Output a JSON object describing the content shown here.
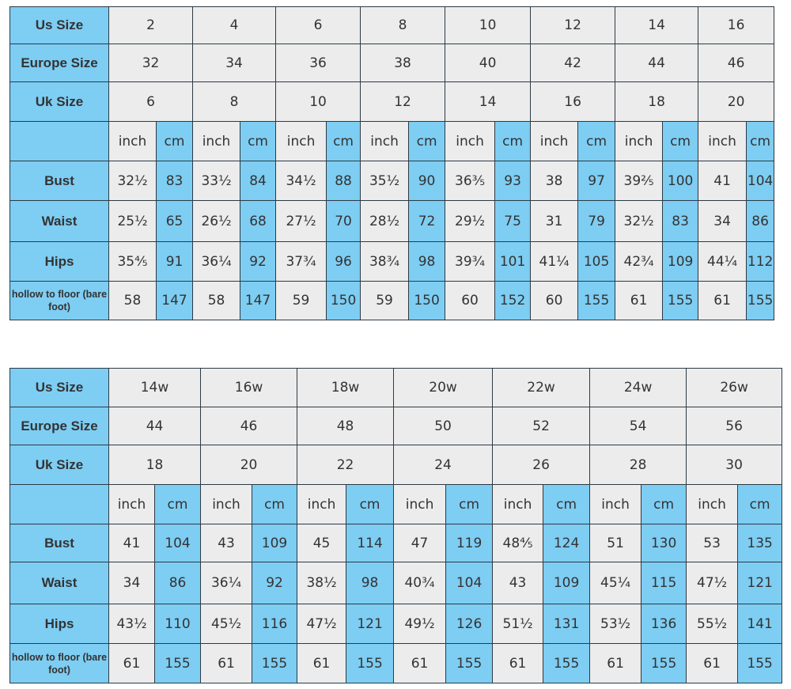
{
  "colors": {
    "label_blue": "#7ecdf3",
    "cell_gray": "#ececec",
    "border": "#2d3a45"
  },
  "tables": [
    {
      "row_labels": {
        "us": "Us Size",
        "europe": "Europe Size",
        "uk": "Uk Size",
        "units": "",
        "bust": "Bust",
        "waist": "Waist",
        "hips": "Hips",
        "hollow": "hollow to floor (bare foot)"
      },
      "unit_labels": {
        "inch": "inch",
        "cm": "cm"
      },
      "us": [
        "2",
        "4",
        "6",
        "8",
        "10",
        "12",
        "14",
        "16"
      ],
      "europe": [
        "32",
        "34",
        "36",
        "38",
        "40",
        "42",
        "44",
        "46"
      ],
      "uk": [
        "6",
        "8",
        "10",
        "12",
        "14",
        "16",
        "18",
        "20"
      ],
      "bust": [
        [
          "32½",
          "83"
        ],
        [
          "33½",
          "84"
        ],
        [
          "34½",
          "88"
        ],
        [
          "35½",
          "90"
        ],
        [
          "36⅗",
          "93"
        ],
        [
          "38",
          "97"
        ],
        [
          "39⅖",
          "100"
        ],
        [
          "41",
          "104"
        ]
      ],
      "waist": [
        [
          "25½",
          "65"
        ],
        [
          "26½",
          "68"
        ],
        [
          "27½",
          "70"
        ],
        [
          "28½",
          "72"
        ],
        [
          "29½",
          "75"
        ],
        [
          "31",
          "79"
        ],
        [
          "32½",
          "83"
        ],
        [
          "34",
          "86"
        ]
      ],
      "hips": [
        [
          "35⅘",
          "91"
        ],
        [
          "36¼",
          "92"
        ],
        [
          "37¾",
          "96"
        ],
        [
          "38¾",
          "98"
        ],
        [
          "39¾",
          "101"
        ],
        [
          "41¼",
          "105"
        ],
        [
          "42¾",
          "109"
        ],
        [
          "44¼",
          "112"
        ]
      ],
      "hollow": [
        [
          "58",
          "147"
        ],
        [
          "58",
          "147"
        ],
        [
          "59",
          "150"
        ],
        [
          "59",
          "150"
        ],
        [
          "60",
          "152"
        ],
        [
          "60",
          "155"
        ],
        [
          "61",
          "155"
        ],
        [
          "61",
          "155"
        ]
      ]
    },
    {
      "row_labels": {
        "us": "Us Size",
        "europe": "Europe Size",
        "uk": "Uk Size",
        "units": "",
        "bust": "Bust",
        "waist": "Waist",
        "hips": "Hips",
        "hollow": "hollow to floor (bare foot)"
      },
      "unit_labels": {
        "inch": "inch",
        "cm": "cm"
      },
      "us": [
        "14w",
        "16w",
        "18w",
        "20w",
        "22w",
        "24w",
        "26w"
      ],
      "europe": [
        "44",
        "46",
        "48",
        "50",
        "52",
        "54",
        "56"
      ],
      "uk": [
        "18",
        "20",
        "22",
        "24",
        "26",
        "28",
        "30"
      ],
      "bust": [
        [
          "41",
          "104"
        ],
        [
          "43",
          "109"
        ],
        [
          "45",
          "114"
        ],
        [
          "47",
          "119"
        ],
        [
          "48⅘",
          "124"
        ],
        [
          "51",
          "130"
        ],
        [
          "53",
          "135"
        ]
      ],
      "waist": [
        [
          "34",
          "86"
        ],
        [
          "36¼",
          "92"
        ],
        [
          "38½",
          "98"
        ],
        [
          "40¾",
          "104"
        ],
        [
          "43",
          "109"
        ],
        [
          "45¼",
          "115"
        ],
        [
          "47½",
          "121"
        ]
      ],
      "hips": [
        [
          "43½",
          "110"
        ],
        [
          "45½",
          "116"
        ],
        [
          "47½",
          "121"
        ],
        [
          "49½",
          "126"
        ],
        [
          "51½",
          "131"
        ],
        [
          "53½",
          "136"
        ],
        [
          "55½",
          "141"
        ]
      ],
      "hollow": [
        [
          "61",
          "155"
        ],
        [
          "61",
          "155"
        ],
        [
          "61",
          "155"
        ],
        [
          "61",
          "155"
        ],
        [
          "61",
          "155"
        ],
        [
          "61",
          "155"
        ],
        [
          "61",
          "155"
        ]
      ]
    }
  ]
}
